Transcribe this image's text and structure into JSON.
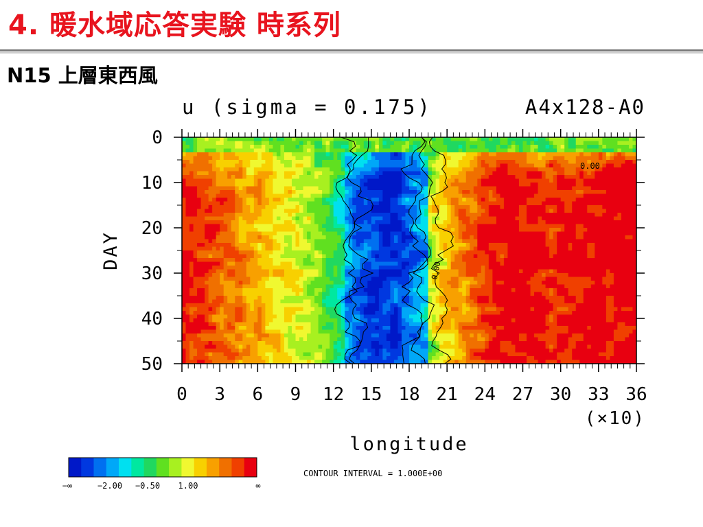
{
  "slide": {
    "title": "4. 暖水域応答実験 時系列",
    "subtitle": "N15 上層東西風"
  },
  "chart_data": {
    "type": "heatmap",
    "title": "u (sigma = 0.175)",
    "run_label": "A4x128-A0",
    "xlabel": "longitude",
    "ylabel": "DAY",
    "x_scale_note": "(×10)",
    "xlim": [
      0,
      36
    ],
    "ylim": [
      0,
      50
    ],
    "y_inverted": true,
    "x_ticks": [
      "0",
      "3",
      "6",
      "9",
      "12",
      "15",
      "18",
      "21",
      "24",
      "27",
      "30",
      "33",
      "36"
    ],
    "y_ticks": [
      "0",
      "10",
      "20",
      "30",
      "40",
      "50"
    ],
    "contour_interval_text": "CONTOUR INTERVAL = 1.000E+00",
    "contour_value_labels": [
      "0.00",
      "0.00"
    ],
    "colorbar": {
      "colors": [
        "#0018c8",
        "#0038e0",
        "#0070f0",
        "#00a8f8",
        "#00e0f0",
        "#00e8a0",
        "#20d860",
        "#60e020",
        "#a8f020",
        "#f0f830",
        "#f8d000",
        "#f8a000",
        "#f07000",
        "#f04000",
        "#e80010"
      ],
      "tick_labels": [
        "−∞",
        "−2.00",
        "−0.50",
        "1.00",
        "∞"
      ]
    },
    "field_regions": {
      "strong_westerly_min_band_center_lon": 16,
      "strong_westerly_band_width_deg": 50,
      "background_mid_latitude_values": "positive (orange-red) east and west of band",
      "early_days_near_zero_values": "green/cyan around days 0-10"
    }
  }
}
